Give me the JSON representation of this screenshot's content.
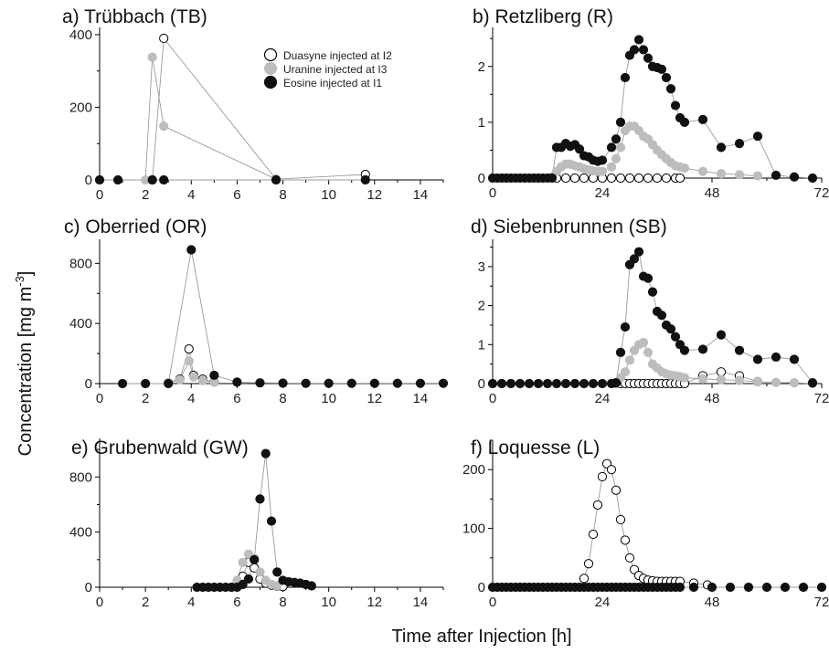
{
  "figure": {
    "xlabel": "Time after Injection [h]",
    "ylabel_main": "Concentration [mg m",
    "ylabel_sup": "-3",
    "ylabel_close": "]"
  },
  "legend": {
    "entries": [
      {
        "label": "Duasyne injected at I2",
        "fill": "#ffffff",
        "stroke": "#000000"
      },
      {
        "label": "Uranine injected at I3",
        "fill": "#bdbdbd",
        "stroke": "#bdbdbd"
      },
      {
        "label": "Eosine injected at I1",
        "fill": "#111111",
        "stroke": "#111111"
      }
    ]
  },
  "styles": {
    "Duasyne": {
      "fill": "#ffffff",
      "stroke": "#000000"
    },
    "Uranine": {
      "fill": "#bdbdbd",
      "stroke": "#bdbdbd"
    },
    "Eosine": {
      "fill": "#111111",
      "stroke": "#111111"
    },
    "line_color": "#9a9a9a"
  },
  "chart_data": [
    {
      "type": "scatter",
      "title": "a) Trübbach (TB)",
      "xlim": [
        0,
        15
      ],
      "ylim": [
        0,
        420
      ],
      "xticks": [
        0,
        2,
        4,
        6,
        8,
        10,
        12,
        14
      ],
      "yticks": [
        0,
        200,
        400
      ],
      "series": [
        {
          "name": "Duasyne",
          "x": [
            2.3,
            2.8,
            7.7,
            11.6
          ],
          "y": [
            0,
            390,
            2,
            15
          ]
        },
        {
          "name": "Uranine",
          "x": [
            2.0,
            2.3,
            2.8,
            7.7
          ],
          "y": [
            0,
            338,
            148,
            2
          ]
        },
        {
          "name": "Eosine",
          "x": [
            0,
            0.8,
            2.3,
            2.8,
            7.7,
            11.6
          ],
          "y": [
            0,
            0,
            0,
            0,
            0,
            0
          ]
        }
      ]
    },
    {
      "type": "scatter",
      "title": "b) Retzliberg (R)",
      "xlim": [
        0,
        72
      ],
      "ylim": [
        0,
        2.7
      ],
      "xticks": [
        0,
        24,
        48,
        72
      ],
      "yticks": [
        0,
        1,
        2
      ],
      "series": [
        {
          "name": "Duasyne",
          "x": [
            14,
            16,
            18,
            20,
            22,
            24,
            26,
            28,
            30,
            32,
            34,
            36,
            38,
            40,
            41
          ],
          "y": [
            0,
            0,
            0,
            0,
            0,
            0,
            0,
            0,
            0,
            0,
            0,
            0,
            0,
            0,
            0
          ]
        },
        {
          "name": "Uranine",
          "x": [
            13,
            14,
            15,
            16,
            17,
            18,
            19,
            20,
            21,
            22,
            23,
            24,
            26,
            27,
            28,
            29,
            30,
            31,
            32,
            33,
            34,
            35,
            36,
            37,
            38,
            39,
            40,
            41,
            42,
            46,
            50,
            54,
            58
          ],
          "y": [
            0.02,
            0.12,
            0.2,
            0.25,
            0.25,
            0.22,
            0.2,
            0.17,
            0.15,
            0.13,
            0.12,
            0.12,
            0.2,
            0.35,
            0.55,
            0.85,
            0.93,
            0.93,
            0.85,
            0.75,
            0.7,
            0.6,
            0.5,
            0.42,
            0.35,
            0.28,
            0.22,
            0.2,
            0.18,
            0.12,
            0.08,
            0.06,
            0.04
          ]
        },
        {
          "name": "Eosine",
          "x": [
            0,
            1,
            2,
            3,
            4,
            5,
            6,
            7,
            8,
            9,
            10,
            11,
            12,
            13,
            14,
            15,
            16,
            17,
            18,
            19,
            20,
            21,
            22,
            23,
            24,
            26,
            27,
            28,
            29,
            30,
            31,
            32,
            33,
            34,
            35,
            36,
            37,
            38,
            39,
            40,
            41,
            42,
            46,
            50,
            54,
            58,
            62,
            66,
            70
          ],
          "y": [
            0,
            0,
            0,
            0,
            0,
            0,
            0,
            0,
            0,
            0,
            0,
            0,
            0,
            0,
            0.55,
            0.55,
            0.62,
            0.57,
            0.6,
            0.52,
            0.4,
            0.38,
            0.32,
            0.3,
            0.32,
            0.55,
            0.7,
            1.0,
            1.8,
            2.2,
            2.3,
            2.48,
            2.3,
            2.15,
            2.0,
            1.98,
            1.95,
            1.8,
            1.6,
            1.3,
            1.08,
            1.0,
            1.05,
            0.55,
            0.62,
            0.75,
            0.05,
            0.02,
            0
          ]
        }
      ]
    },
    {
      "type": "scatter",
      "title": "c) Oberried (OR)",
      "xlim": [
        0,
        15
      ],
      "ylim": [
        0,
        960
      ],
      "xticks": [
        0,
        2,
        4,
        6,
        8,
        10,
        12,
        14
      ],
      "yticks": [
        0,
        400,
        800
      ],
      "series": [
        {
          "name": "Duasyne",
          "x": [
            3,
            3.5,
            3.9,
            4.1,
            4.5,
            5
          ],
          "y": [
            5,
            30,
            230,
            55,
            30,
            10
          ]
        },
        {
          "name": "Uranine",
          "x": [
            3,
            3.5,
            3.9,
            4.1,
            4.5,
            5
          ],
          "y": [
            5,
            25,
            150,
            45,
            20,
            8
          ]
        },
        {
          "name": "Eosine",
          "x": [
            1,
            2,
            3,
            4,
            5,
            6,
            7,
            8,
            9,
            10,
            11,
            12,
            13,
            14,
            15
          ],
          "y": [
            0,
            0,
            0,
            890,
            55,
            10,
            5,
            3,
            2,
            2,
            2,
            2,
            2,
            2,
            2
          ]
        }
      ]
    },
    {
      "type": "scatter",
      "title": "d) Siebenbrunnen (SB)",
      "xlim": [
        0,
        72
      ],
      "ylim": [
        0,
        3.7
      ],
      "xticks": [
        0,
        24,
        48,
        72
      ],
      "yticks": [
        0,
        1,
        2,
        3
      ],
      "series": [
        {
          "name": "Duasyne",
          "x": [
            27,
            28,
            29,
            30,
            31,
            32,
            33,
            34,
            35,
            36,
            37,
            38,
            39,
            40,
            41,
            42,
            46,
            50,
            54,
            58
          ],
          "y": [
            0,
            0,
            0,
            0,
            0,
            0,
            0,
            0,
            0,
            0,
            0,
            0,
            0,
            0,
            0,
            0,
            0.2,
            0.3,
            0.2,
            0.05
          ]
        },
        {
          "name": "Uranine",
          "x": [
            27,
            28,
            29,
            30,
            31,
            32,
            33,
            34,
            35,
            36,
            37,
            38,
            39,
            40,
            41,
            42,
            46,
            50,
            54,
            58,
            62,
            66,
            70
          ],
          "y": [
            0,
            0.15,
            0.3,
            0.6,
            0.85,
            1.0,
            1.05,
            0.8,
            0.5,
            0.4,
            0.3,
            0.25,
            0.22,
            0.2,
            0.18,
            0.15,
            0.12,
            0.1,
            0.08,
            0.05,
            0.03,
            0.02,
            0
          ]
        },
        {
          "name": "Eosine",
          "x": [
            0,
            2,
            4,
            6,
            8,
            10,
            12,
            14,
            16,
            18,
            20,
            22,
            24,
            26,
            27,
            28,
            29,
            30,
            31,
            32,
            33,
            34,
            35,
            36,
            37,
            38,
            39,
            40,
            41,
            42,
            46,
            50,
            54,
            58,
            62,
            66,
            70
          ],
          "y": [
            0,
            0,
            0,
            0,
            0,
            0,
            0,
            0,
            0,
            0,
            0,
            0,
            0,
            0,
            0.02,
            0.8,
            1.45,
            3.05,
            3.2,
            3.38,
            2.75,
            2.7,
            2.35,
            1.85,
            1.75,
            1.5,
            1.4,
            1.2,
            1.0,
            0.85,
            0.88,
            1.25,
            0.85,
            0.62,
            0.68,
            0.62,
            0.02
          ]
        }
      ]
    },
    {
      "type": "scatter",
      "title": "e) Grubenwald (GW)",
      "xlim": [
        0,
        15
      ],
      "ylim": [
        0,
        1080
      ],
      "xticks": [
        0,
        2,
        4,
        6,
        8,
        10,
        12,
        14
      ],
      "yticks": [
        0,
        400,
        800
      ],
      "series": [
        {
          "name": "Duasyne",
          "x": [
            6.0,
            6.25,
            6.5,
            6.75,
            7.0,
            7.25,
            7.5,
            7.75,
            8.0
          ],
          "y": [
            20,
            80,
            180,
            140,
            60,
            30,
            15,
            8,
            5
          ]
        },
        {
          "name": "Uranine",
          "x": [
            6.0,
            6.25,
            6.5,
            6.75,
            7.0,
            7.25,
            7.5,
            7.75
          ],
          "y": [
            50,
            180,
            240,
            210,
            110,
            50,
            20,
            10
          ]
        },
        {
          "name": "Eosine",
          "x": [
            4.25,
            4.5,
            4.75,
            5.0,
            5.25,
            5.5,
            5.75,
            6.0,
            6.25,
            6.5,
            6.75,
            7.0,
            7.25,
            7.5,
            7.75,
            8.0,
            8.25,
            8.5,
            8.75,
            9.0,
            9.25
          ],
          "y": [
            0,
            0,
            0,
            0,
            0,
            0,
            0,
            0,
            20,
            60,
            200,
            640,
            970,
            480,
            110,
            50,
            40,
            35,
            30,
            20,
            10
          ]
        }
      ]
    },
    {
      "type": "scatter",
      "title": "f) Loquesse (L)",
      "xlim": [
        0,
        72
      ],
      "ylim": [
        0,
        250
      ],
      "xticks": [
        0,
        24,
        48,
        72
      ],
      "yticks": [
        0,
        100,
        200
      ],
      "series": [
        {
          "name": "Duasyne",
          "x": [
            20,
            21,
            22,
            23,
            24,
            25,
            26,
            27,
            28,
            29,
            30,
            31,
            32,
            33,
            34,
            35,
            36,
            37,
            38,
            39,
            40,
            41,
            44,
            47
          ],
          "y": [
            15,
            40,
            90,
            140,
            188,
            210,
            200,
            165,
            115,
            80,
            50,
            30,
            20,
            15,
            12,
            11,
            10,
            10,
            10,
            10,
            10,
            10,
            7,
            4
          ]
        },
        {
          "name": "Eosine",
          "x": [
            0,
            1,
            2,
            3,
            4,
            5,
            6,
            7,
            8,
            9,
            10,
            11,
            12,
            13,
            14,
            15,
            16,
            17,
            18,
            19,
            20,
            21,
            22,
            23,
            24,
            25,
            26,
            27,
            28,
            29,
            30,
            31,
            32,
            33,
            34,
            35,
            36,
            37,
            38,
            39,
            40,
            41,
            44,
            48,
            52,
            56,
            60,
            64,
            68,
            72
          ],
          "y": [
            0,
            0,
            0,
            0,
            0,
            0,
            0,
            0,
            0,
            0,
            0,
            0,
            0,
            0,
            0,
            0,
            0,
            0,
            0,
            0,
            0,
            0,
            0,
            0,
            0,
            0,
            0,
            0,
            0,
            0,
            0,
            0,
            0,
            0,
            0,
            0,
            0,
            0,
            0,
            0,
            0,
            0,
            0,
            0,
            0,
            0,
            0,
            0,
            0,
            0
          ]
        }
      ]
    }
  ]
}
